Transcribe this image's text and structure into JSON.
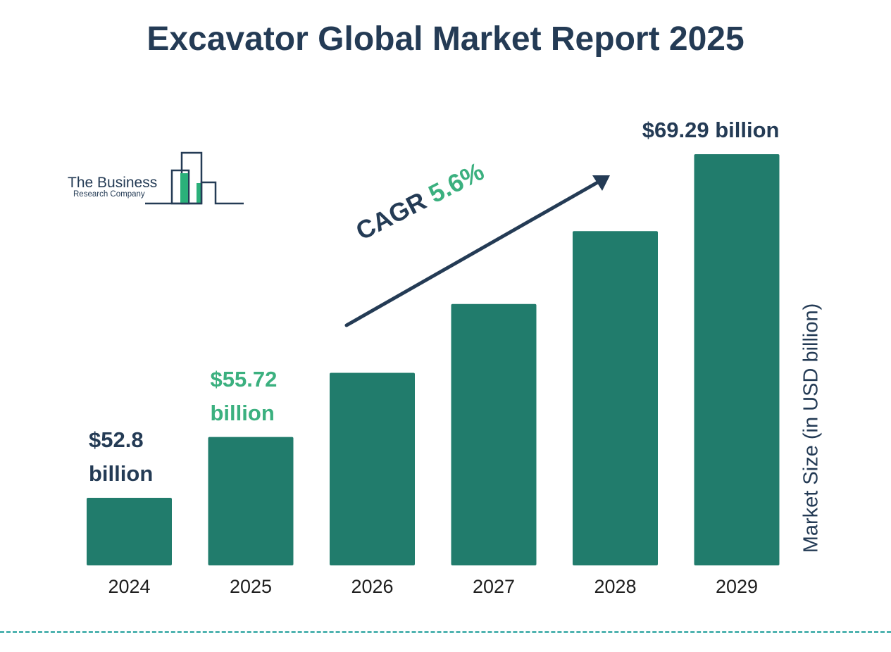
{
  "title": "Excavator Global Market Report 2025",
  "logo": {
    "line1": "The Business",
    "line2": "Research Company",
    "colors": {
      "outline": "#243b55",
      "accent": "#2bb07a"
    }
  },
  "chart_data": {
    "type": "bar",
    "categories": [
      "2024",
      "2025",
      "2026",
      "2027",
      "2028",
      "2029"
    ],
    "values": [
      52.8,
      55.72,
      58.8,
      62.1,
      65.6,
      69.29
    ],
    "labels": [
      {
        "index": 0,
        "lines": [
          "$52.8",
          "billion"
        ],
        "color": "#243b55"
      },
      {
        "index": 1,
        "lines": [
          "$55.72",
          "billion"
        ],
        "color": "#3bb07f"
      },
      {
        "index": 5,
        "lines": [
          "$69.29 billion"
        ],
        "color": "#243b55"
      }
    ],
    "title": "Excavator Global Market Report 2025",
    "ylabel": "Market Size (in USD billion)",
    "xlabel": "",
    "annotation": {
      "word": "CAGR",
      "value": "5.6%"
    },
    "bar_color": "#217c6c",
    "grid": false
  }
}
